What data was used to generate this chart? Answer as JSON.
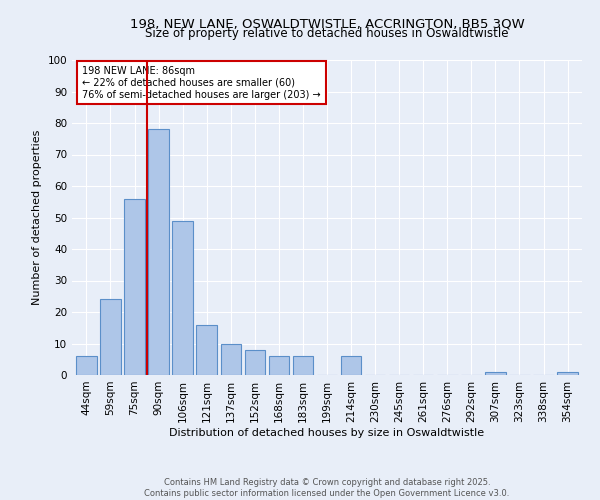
{
  "title_line1": "198, NEW LANE, OSWALDTWISTLE, ACCRINGTON, BB5 3QW",
  "title_line2": "Size of property relative to detached houses in Oswaldtwistle",
  "xlabel": "Distribution of detached houses by size in Oswaldtwistle",
  "ylabel": "Number of detached properties",
  "bar_labels": [
    "44sqm",
    "59sqm",
    "75sqm",
    "90sqm",
    "106sqm",
    "121sqm",
    "137sqm",
    "152sqm",
    "168sqm",
    "183sqm",
    "199sqm",
    "214sqm",
    "230sqm",
    "245sqm",
    "261sqm",
    "276sqm",
    "292sqm",
    "307sqm",
    "323sqm",
    "338sqm",
    "354sqm"
  ],
  "bar_values": [
    6,
    24,
    56,
    78,
    49,
    16,
    10,
    8,
    6,
    6,
    0,
    6,
    0,
    0,
    0,
    0,
    0,
    1,
    0,
    0,
    1
  ],
  "bar_color": "#aec6e8",
  "bar_edge_color": "#5b8fc9",
  "background_color": "#e8eef8",
  "grid_color": "#ffffff",
  "vline_color": "#cc0000",
  "vline_pos": 2.5,
  "annotation_box_text": "198 NEW LANE: 86sqm\n← 22% of detached houses are smaller (60)\n76% of semi-detached houses are larger (203) →",
  "annotation_box_color": "#cc0000",
  "annotation_box_bg": "#ffffff",
  "footnote": "Contains HM Land Registry data © Crown copyright and database right 2025.\nContains public sector information licensed under the Open Government Licence v3.0.",
  "ylim": [
    0,
    100
  ],
  "yticks": [
    0,
    10,
    20,
    30,
    40,
    50,
    60,
    70,
    80,
    90,
    100
  ],
  "title_fontsize": 9.5,
  "subtitle_fontsize": 8.5,
  "axis_label_fontsize": 8,
  "tick_fontsize": 7.5,
  "annot_fontsize": 7,
  "footnote_fontsize": 6
}
